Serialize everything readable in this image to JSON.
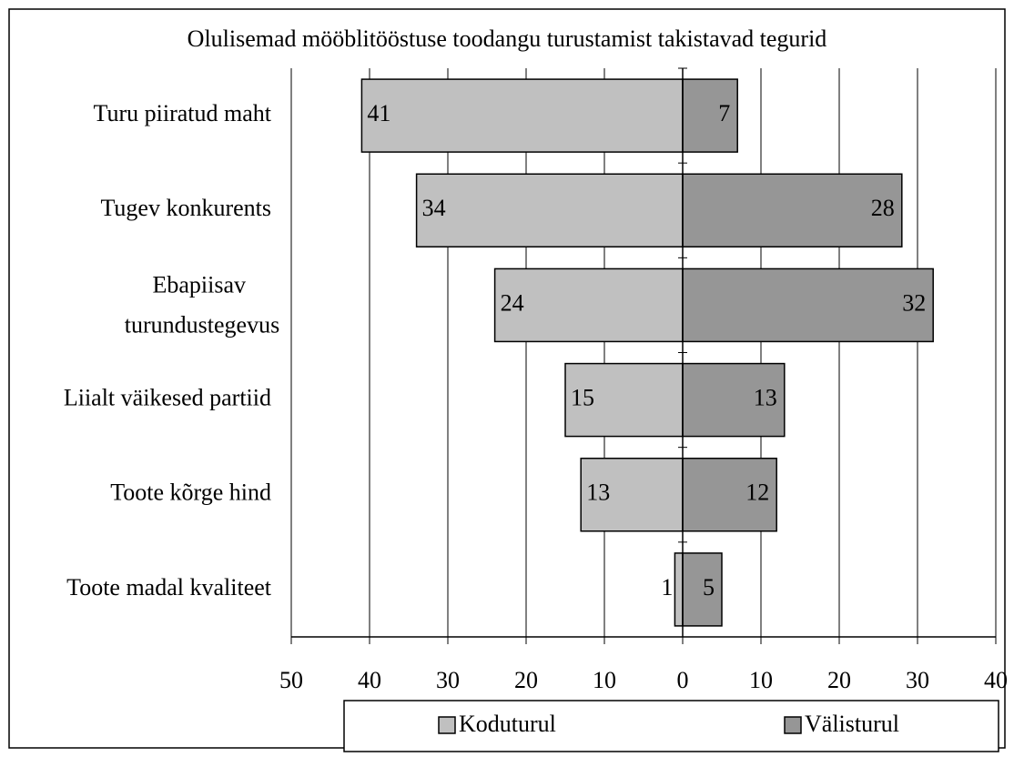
{
  "chart_data": {
    "type": "diverging-bar",
    "title": "Olulisemad mööblitööstuse toodangu turustamist takistavad tegurid",
    "categories": [
      "Turu piiratud maht",
      "Tugev konkurents",
      "Ebapiisav turundustegevus",
      "Liialt väikesed partiid",
      "Toote kõrge hind",
      "Toote madal kvaliteet"
    ],
    "series": [
      {
        "name": "Koduturul",
        "color": "#c0c0c0",
        "label_color": "#ff0000",
        "values": [
          -41,
          -34,
          -24,
          -15,
          -13,
          -1
        ],
        "value_labels": [
          "41",
          "34",
          "24",
          "15",
          "13",
          "1"
        ]
      },
      {
        "name": "Välisturul",
        "color": "#969696",
        "label_color": "#000000",
        "values": [
          7,
          28,
          32,
          13,
          12,
          5
        ]
      }
    ],
    "xlim": [
      -50,
      40
    ],
    "xticks": [
      {
        "value": -50,
        "label": "50"
      },
      {
        "value": -40,
        "label": "40"
      },
      {
        "value": -30,
        "label": "30"
      },
      {
        "value": -20,
        "label": "20"
      },
      {
        "value": -10,
        "label": "10"
      },
      0,
      10,
      20,
      30,
      40
    ],
    "negative_tick_color": "#ff0000",
    "grid": true,
    "legend": "bottom"
  }
}
